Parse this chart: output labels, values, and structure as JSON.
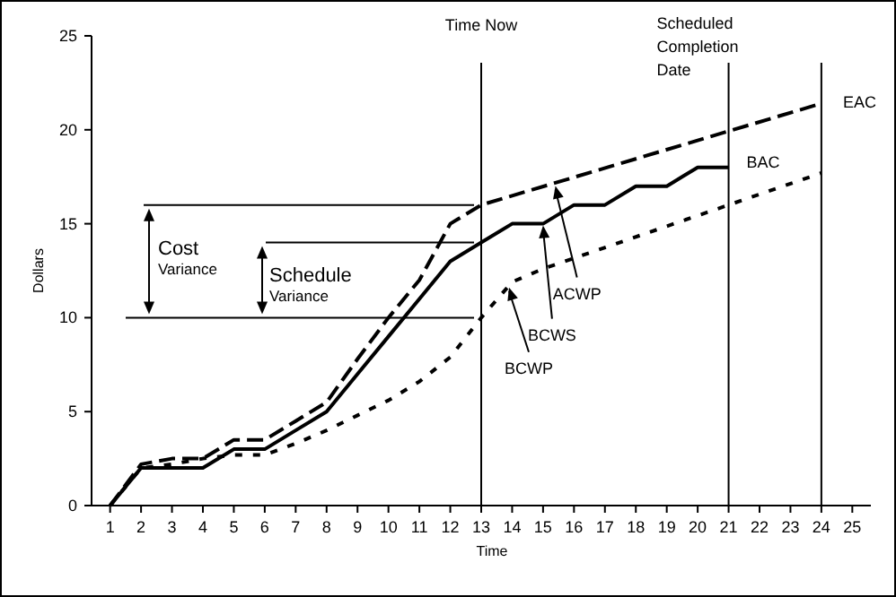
{
  "chart_data": {
    "type": "line",
    "xlabel": "Time",
    "ylabel": "Dollars",
    "xlim": [
      0.4,
      25.6
    ],
    "xticks": [
      1,
      2,
      3,
      4,
      5,
      6,
      7,
      8,
      9,
      10,
      11,
      12,
      13,
      14,
      15,
      16,
      17,
      18,
      19,
      20,
      21,
      22,
      23,
      24,
      25
    ],
    "ylim": [
      0,
      25
    ],
    "yticks": [
      0,
      5,
      10,
      15,
      20,
      25
    ],
    "grid": false,
    "series": [
      {
        "color": "#000000",
        "line_style": "dashed",
        "x": [
          1,
          2,
          3,
          4,
          5,
          6,
          7,
          8,
          9,
          10,
          11,
          12,
          13,
          24
        ],
        "values": [
          0,
          2.2,
          2.5,
          2.5,
          3.5,
          3.5,
          4.5,
          5.5,
          7.8,
          10,
          12,
          15,
          16,
          21.4
        ]
      },
      {
        "color": "#000000",
        "line_style": "solid",
        "x": [
          1,
          2,
          3,
          4,
          5,
          6,
          7,
          8,
          9,
          10,
          11,
          12,
          13,
          14,
          15,
          16,
          17,
          18,
          19,
          20,
          21
        ],
        "values": [
          0,
          2,
          2,
          2,
          3,
          3,
          4,
          5,
          7,
          9,
          11,
          13,
          14,
          15,
          15,
          16,
          16,
          17,
          17,
          18,
          18
        ]
      },
      {
        "color": "#000000",
        "line_style": "dotted",
        "x": [
          1,
          2,
          3,
          4,
          5,
          6,
          7,
          8,
          9,
          10,
          11,
          12,
          13,
          14,
          15,
          24
        ],
        "values": [
          0,
          2,
          2.2,
          2.5,
          2.7,
          2.7,
          3.3,
          4,
          4.8,
          5.6,
          6.6,
          7.9,
          10,
          11.9,
          12.6,
          17.7
        ]
      }
    ],
    "ref_lines": [
      {
        "axis": "x",
        "value": 13,
        "label": "Time Now"
      },
      {
        "axis": "x",
        "value": 21,
        "label": "Scheduled Completion Date"
      },
      {
        "axis": "x",
        "value": 24,
        "label": "EAC"
      },
      {
        "axis": "y",
        "value": 16,
        "label": null
      },
      {
        "axis": "y",
        "value": 14,
        "label": null
      },
      {
        "axis": "y",
        "value": 10,
        "label": null
      }
    ],
    "annotations": [
      "Cost $_{Variance}$",
      "Schedule $_{Variance}$",
      {
        "text": "BAC",
        "x": 21,
        "y": 18
      },
      {
        "text": "ACWP",
        "x": 15.4,
        "y": 17.1
      },
      {
        "text": "BCWS",
        "x": 15,
        "y": 15
      },
      {
        "text": "BCWP",
        "x": 13.9,
        "y": 11.7
      }
    ]
  }
}
